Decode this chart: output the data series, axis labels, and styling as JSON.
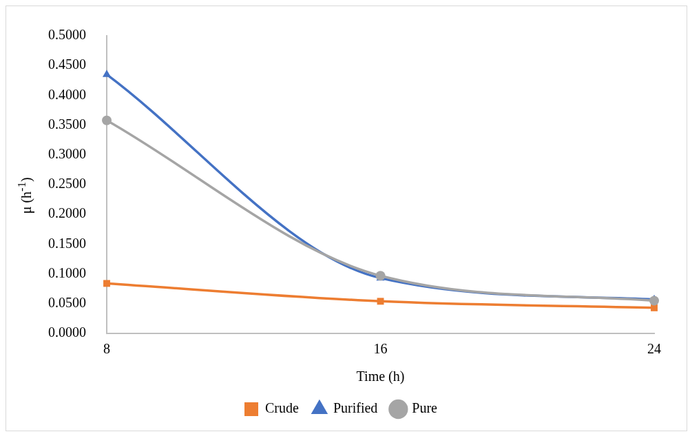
{
  "chart_data": {
    "type": "line",
    "xlabel": "Time (h)",
    "ylabel": "μ (h$^{-1}$)",
    "categories": [
      "8",
      "16",
      "24"
    ],
    "series": [
      {
        "name": "Crude",
        "color": "#ed7d31",
        "marker": "square",
        "values": [
          0.084,
          0.054,
          0.043
        ]
      },
      {
        "name": "Purified",
        "color": "#4472c4",
        "marker": "triangle",
        "values": [
          0.435,
          0.093,
          0.057
        ]
      },
      {
        "name": "Pure",
        "color": "#a5a5a5",
        "marker": "circle",
        "values": [
          0.358,
          0.097,
          0.055
        ]
      }
    ],
    "ylim": [
      0,
      0.5
    ],
    "yticks": [
      {
        "value": 0,
        "label": "0.0000"
      },
      {
        "value": 0.05,
        "label": "0.0500"
      },
      {
        "value": 0.1,
        "label": "0.1000"
      },
      {
        "value": 0.15,
        "label": "0.1500"
      },
      {
        "value": 0.2,
        "label": "0.2000"
      },
      {
        "value": 0.25,
        "label": "0.2500"
      },
      {
        "value": 0.3,
        "label": "0.3000"
      },
      {
        "value": 0.35,
        "label": "0.3500"
      },
      {
        "value": 0.4,
        "label": "0.4000"
      },
      {
        "value": 0.45,
        "label": "0.4500"
      },
      {
        "value": 0.5,
        "label": "0.5000"
      }
    ],
    "grid": false,
    "legend": "bottom",
    "line_style": "solid"
  }
}
